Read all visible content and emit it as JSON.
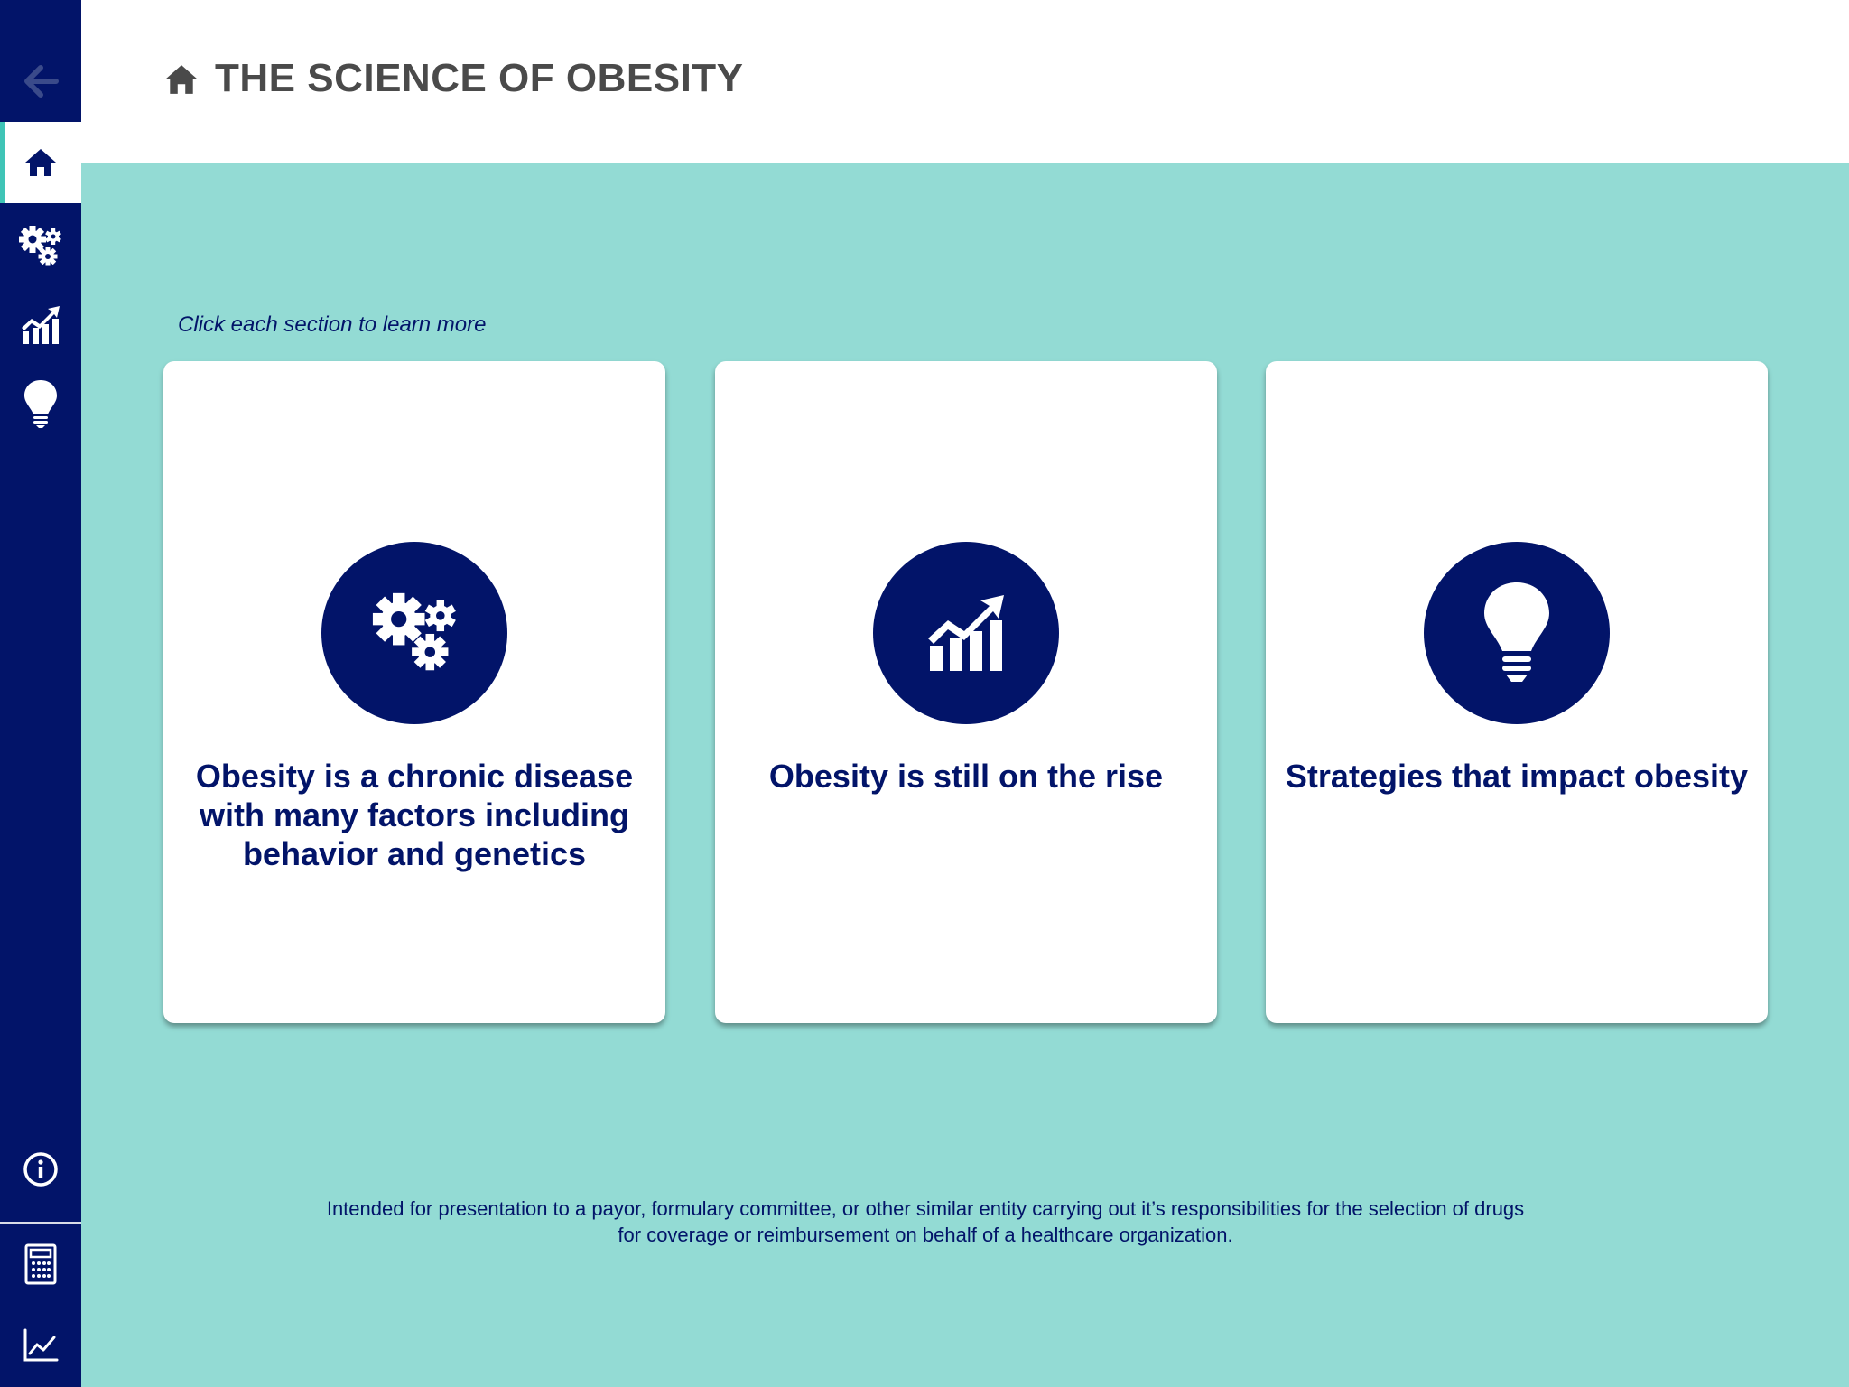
{
  "header": {
    "title": "THE SCIENCE OF OBESITY"
  },
  "instruction": "Click each section to learn more",
  "cards": [
    {
      "label": "Obesity is a chronic disease with many factors including behavior and genetics",
      "icon": "gears-icon"
    },
    {
      "label": "Obesity is still on the rise",
      "icon": "rising-chart-icon"
    },
    {
      "label": "Strategies that impact obesity",
      "icon": "lightbulb-icon"
    }
  ],
  "disclaimer": "Intended for presentation to a payor, formulary committee, or other similar entity carrying out it’s responsibilities for the selection of drugs for coverage or reimbursement on behalf of a healthcare organization.",
  "sidebar": {
    "items": [
      "back-arrow-icon",
      "home-icon",
      "gears-icon",
      "rising-chart-icon",
      "lightbulb-icon",
      "info-icon",
      "calculator-icon",
      "line-graph-icon"
    ]
  },
  "colors": {
    "navy": "#021469",
    "teal_background": "#93dbd4",
    "accent": "#3fc4b6",
    "title_gray": "#4a4a4a"
  }
}
